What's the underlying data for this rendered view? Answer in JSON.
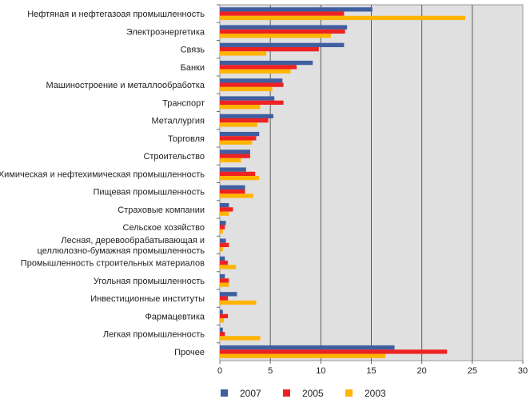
{
  "chart_data": {
    "type": "bar",
    "orientation": "horizontal",
    "categories": [
      "Нефтяная и нефтегазоая промышленность",
      "Электроэнергетика",
      "Связь",
      "Банки",
      "Машиностроение и металлообработка",
      "Транспорт",
      "Металлургия",
      "Торговля",
      "Строительство",
      "Химическая и нефтехимическая промышленность",
      "Пищевая промышленность",
      "Страховые компании",
      "Сельское хозяйство",
      "Лесная, деревообрабатывающая и\nцеллюлозно-бумажная промышленность",
      "Промышленность строительных материалов",
      "Угольная промышленность",
      "Инвестиционные институты",
      "Фармацевтика",
      "Легкая промышленность",
      "Прочее"
    ],
    "series": [
      {
        "name": "2007",
        "color": "#3f5fa0",
        "values": [
          15.1,
          12.6,
          12.3,
          9.2,
          6.2,
          5.4,
          5.3,
          3.9,
          3.0,
          2.6,
          2.5,
          0.9,
          0.6,
          0.6,
          0.5,
          0.5,
          1.7,
          0.3,
          0.3,
          17.3
        ]
      },
      {
        "name": "2005",
        "color": "#ee2222",
        "values": [
          12.3,
          12.4,
          9.8,
          7.6,
          6.3,
          6.3,
          4.8,
          3.6,
          3.0,
          3.5,
          2.5,
          1.3,
          0.5,
          0.9,
          0.8,
          0.9,
          0.8,
          0.8,
          0.5,
          22.5
        ]
      },
      {
        "name": "2003",
        "color": "#ffb400",
        "values": [
          24.3,
          11.0,
          4.6,
          7.0,
          5.2,
          4.0,
          3.7,
          3.2,
          2.1,
          3.9,
          3.3,
          0.9,
          0.3,
          0.3,
          1.6,
          0.9,
          3.6,
          0.4,
          4.0,
          16.4
        ]
      }
    ],
    "xlim": [
      0,
      30
    ],
    "xticks": [
      "0",
      "5",
      "10",
      "15",
      "20",
      "25",
      "30"
    ],
    "grid": true,
    "legend_position": "bottom"
  }
}
